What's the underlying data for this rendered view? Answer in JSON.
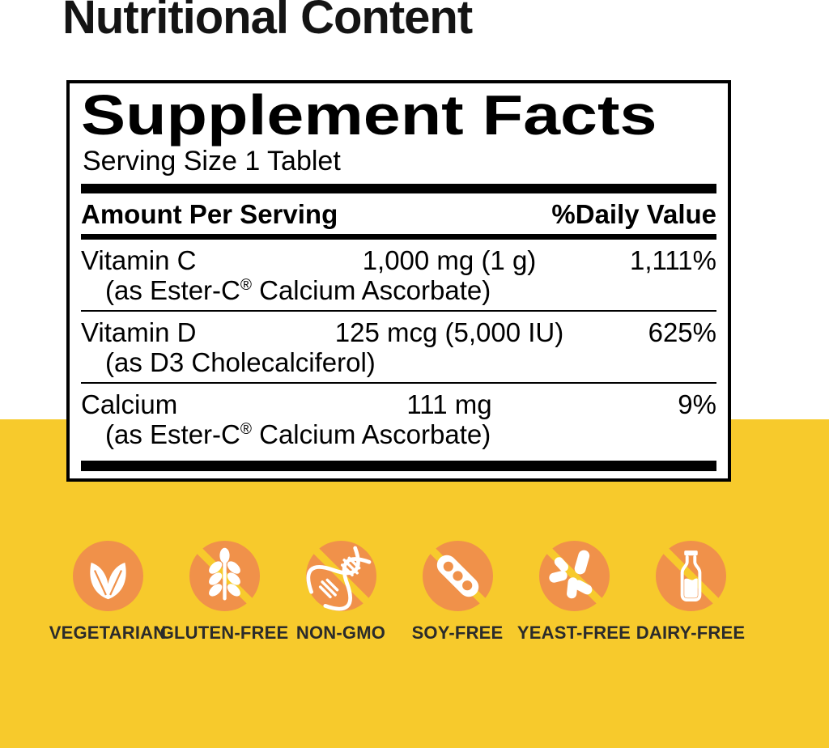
{
  "page": {
    "title": "Nutritional Content"
  },
  "colors": {
    "yellow_bg": "#F7CA2C",
    "orange_icon": "#F0914A",
    "ink": "#000000",
    "title_text": "#141414",
    "badge_label_text": "#2B2B2B",
    "panel_bg": "#FFFFFF"
  },
  "supplement_facts": {
    "title": "Supplement Facts",
    "serving_size": "Serving Size 1 Tablet",
    "columns": {
      "amount_header": "Amount Per Serving",
      "dv_header": "%Daily Value"
    },
    "rows": [
      {
        "name": "Vitamin C",
        "amount": "1,000 mg (1 g)",
        "daily_value": "1,111%",
        "source": "(as Ester-C® Calcium Ascorbate)"
      },
      {
        "name": "Vitamin D",
        "amount": "125 mcg (5,000 IU)",
        "daily_value": "625%",
        "source": "(as D3 Cholecalciferol)"
      },
      {
        "name": "Calcium",
        "amount": "111 mg",
        "daily_value": "9%",
        "source": "(as Ester-C® Calcium Ascorbate)"
      }
    ]
  },
  "badges": [
    {
      "label": "VEGETARIAN",
      "icon": "leaves-icon",
      "slash": false
    },
    {
      "label": "GLUTEN-FREE",
      "icon": "wheat-icon",
      "slash": true
    },
    {
      "label": "NON-GMO",
      "icon": "dna-icon",
      "slash": true
    },
    {
      "label": "SOY-FREE",
      "icon": "soy-pod-icon",
      "slash": true
    },
    {
      "label": "YEAST-FREE",
      "icon": "yeast-cells-icon",
      "slash": true
    },
    {
      "label": "DAIRY-FREE",
      "icon": "milk-bottle-icon",
      "slash": true
    }
  ]
}
